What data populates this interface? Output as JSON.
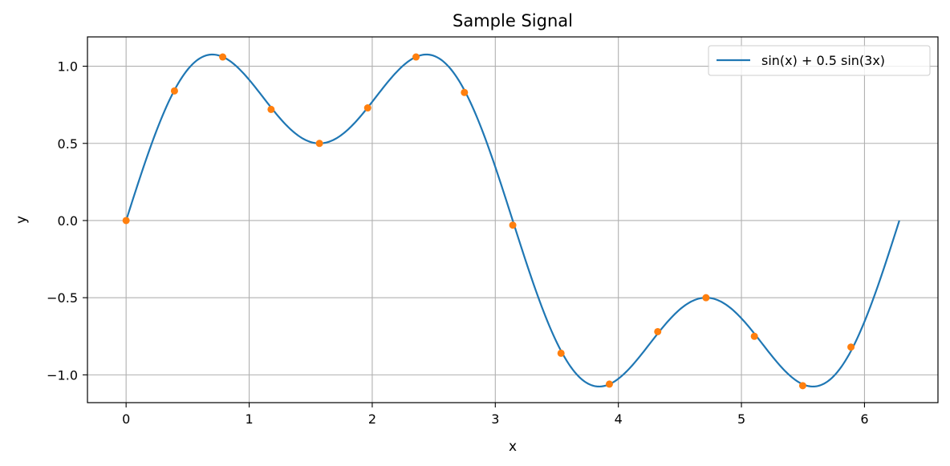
{
  "chart_data": {
    "type": "line",
    "title": "Sample Signal",
    "xlabel": "x",
    "ylabel": "y",
    "xlim": [
      -0.314,
      6.597
    ],
    "ylim": [
      -1.18,
      1.19
    ],
    "xticks": [
      0,
      1,
      2,
      3,
      4,
      5,
      6
    ],
    "xtick_labels": [
      "0",
      "1",
      "2",
      "3",
      "4",
      "5",
      "6"
    ],
    "yticks": [
      -1.0,
      -0.5,
      0.0,
      0.5,
      1.0
    ],
    "ytick_labels": [
      "−1.0",
      "−0.5",
      "0.0",
      "0.5",
      "1.0"
    ],
    "grid": true,
    "legend_position": "top-right",
    "series": [
      {
        "name": "sin(x) + 0.5 sin(3x)",
        "type": "line",
        "color": "#1f77b4",
        "formula_x_range": [
          0,
          6.2832
        ]
      },
      {
        "name": "",
        "type": "scatter",
        "color": "#ff7f0e",
        "x": [
          0.0,
          0.393,
          0.785,
          1.178,
          1.571,
          1.963,
          2.356,
          2.749,
          3.142,
          3.534,
          3.927,
          4.32,
          4.712,
          5.105,
          5.498,
          5.89
        ],
        "y": [
          0.0,
          0.84,
          1.06,
          0.72,
          0.5,
          0.73,
          1.06,
          0.83,
          -0.03,
          -0.86,
          -1.06,
          -0.72,
          -0.5,
          -0.75,
          -1.07,
          -0.82
        ]
      }
    ]
  }
}
